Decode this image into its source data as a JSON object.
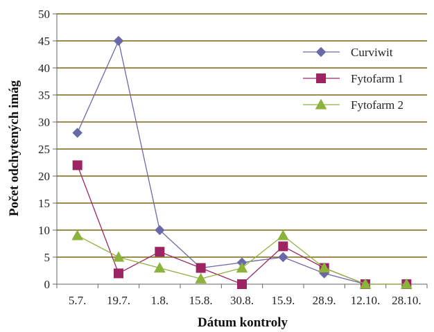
{
  "chart_data": {
    "type": "line",
    "xlabel": "Dátum kontroly",
    "ylabel": "Počet odchytených imág",
    "categories": [
      "5.7.",
      "19.7.",
      "1.8.",
      "15.8.",
      "30.8.",
      "15.9.",
      "28.9.",
      "12.10.",
      "28.10."
    ],
    "ylim": [
      0,
      50
    ],
    "yticks": [
      "0",
      "5",
      "10",
      "15",
      "20",
      "25",
      "30",
      "35",
      "40",
      "45",
      "50"
    ],
    "grid": true,
    "legend_position": "top-right",
    "series": [
      {
        "name": "Curviwit",
        "values": [
          28,
          45,
          10,
          3,
          4,
          5,
          2,
          0,
          null
        ],
        "color": "#6a69a8",
        "marker": "diamond"
      },
      {
        "name": "Fytofarm 1",
        "values": [
          22,
          2,
          6,
          3,
          0,
          7,
          3,
          0,
          0
        ],
        "color": "#9c2463",
        "marker": "square"
      },
      {
        "name": "Fytofarm 2",
        "values": [
          9,
          5,
          3,
          1,
          3,
          9,
          3,
          0,
          0
        ],
        "color": "#8db33d",
        "marker": "triangle"
      }
    ],
    "colors": {
      "gridline": "#7d6410",
      "axis": "#666666"
    }
  }
}
